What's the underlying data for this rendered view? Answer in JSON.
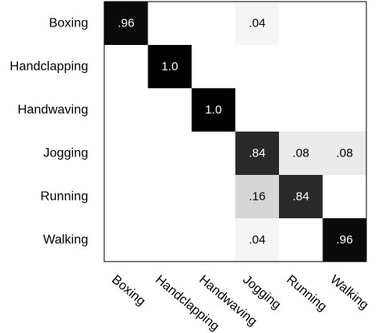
{
  "chart_data": {
    "type": "heatmap",
    "title": "",
    "xlabel": "",
    "ylabel": "",
    "rows": [
      "Boxing",
      "Handclapping",
      "Handwaving",
      "Jogging",
      "Running",
      "Walking"
    ],
    "columns": [
      "Boxing",
      "Handclapping",
      "Handwaving",
      "Jogging",
      "Running",
      "Walking"
    ],
    "values": [
      [
        0.96,
        0,
        0,
        0.04,
        0,
        0
      ],
      [
        0,
        1.0,
        0,
        0,
        0,
        0
      ],
      [
        0,
        0,
        1.0,
        0,
        0,
        0
      ],
      [
        0,
        0,
        0,
        0.84,
        0.08,
        0.08
      ],
      [
        0,
        0,
        0,
        0.16,
        0.84,
        0
      ],
      [
        0,
        0,
        0,
        0.04,
        0,
        0.96
      ]
    ],
    "cell_labels": [
      [
        ".96",
        "",
        "",
        ".04",
        "",
        ""
      ],
      [
        "",
        "1.0",
        "",
        "",
        "",
        ""
      ],
      [
        "",
        "",
        "1.0",
        "",
        "",
        ""
      ],
      [
        "",
        "",
        "",
        ".84",
        ".08",
        ".08"
      ],
      [
        "",
        "",
        "",
        ".16",
        ".84",
        ""
      ],
      [
        "",
        "",
        "",
        ".04",
        "",
        ".96"
      ]
    ],
    "colormap": {
      "low": "#ffffff",
      "high": "#000000"
    },
    "grid": false,
    "legend": "none"
  }
}
